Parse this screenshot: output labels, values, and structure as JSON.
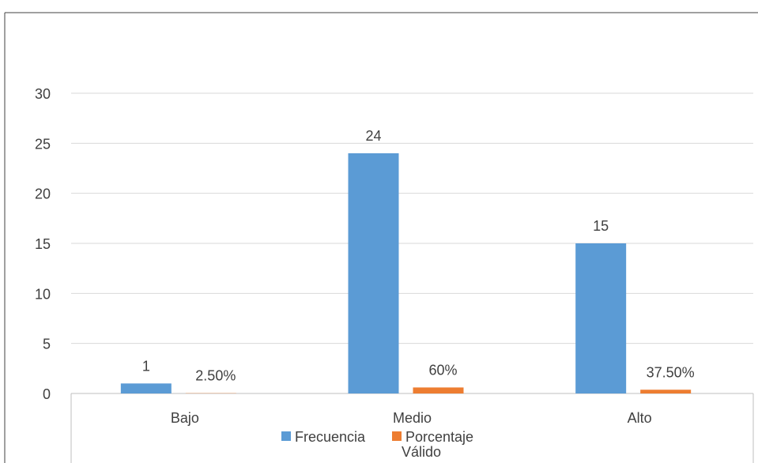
{
  "chart_data": {
    "type": "bar",
    "categories": [
      "Bajo",
      "Medio",
      "Alto"
    ],
    "series": [
      {
        "name": "Frecuencia",
        "values": [
          1,
          24,
          15
        ],
        "labels": [
          "1",
          "24",
          "15"
        ],
        "color": "#5B9BD5"
      },
      {
        "name": "Porcentaje Válido",
        "values": [
          0.025,
          0.6,
          0.375
        ],
        "labels": [
          "2.50%",
          "60%",
          "37.50%"
        ],
        "color": "#ED7D31"
      }
    ],
    "y_ticks": [
      "0",
      "5",
      "10",
      "15",
      "20",
      "25",
      "30"
    ],
    "ylim": [
      0,
      30
    ],
    "grid": true,
    "legend_position": "bottom",
    "legend_lines": [
      "Frecuencia",
      "Porcentaje",
      "Válido"
    ],
    "colors": {
      "grid": "#D9D9D9",
      "border": "#BFBFBF",
      "text": "#404040"
    }
  }
}
